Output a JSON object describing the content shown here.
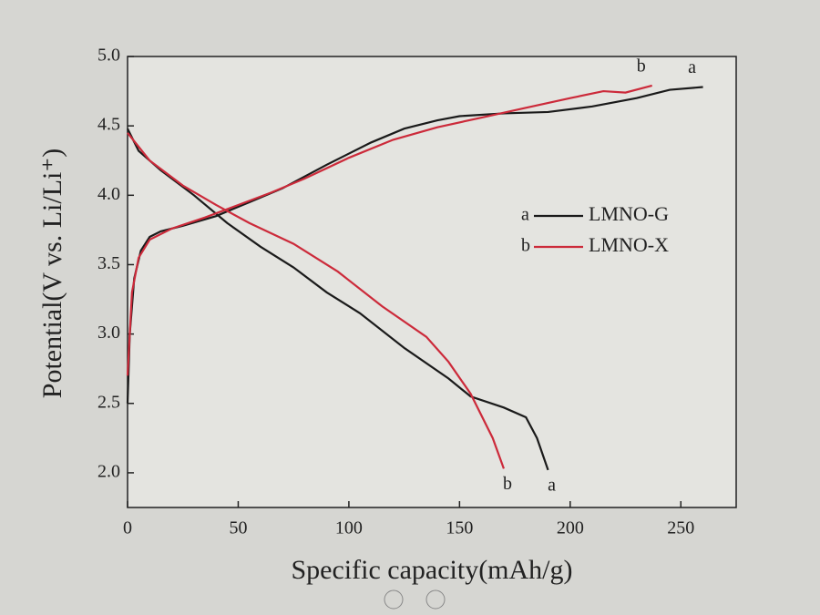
{
  "chart_data": {
    "type": "line",
    "xlabel": "Specific capacity(mAh/g)",
    "ylabel": "Potential(V vs. Li/Li⁺)",
    "xlim": [
      0,
      275
    ],
    "ylim": [
      1.75,
      5.0
    ],
    "xticks": [
      0,
      50,
      100,
      150,
      200,
      250
    ],
    "yticks": [
      {
        "value": 2,
        "label": "2.0"
      },
      {
        "value": 2.5,
        "label": "2.5"
      },
      {
        "value": 3,
        "label": "3.0"
      },
      {
        "value": 3.5,
        "label": "3.5"
      },
      {
        "value": 4,
        "label": "4.0"
      },
      {
        "value": 4.5,
        "label": "4.5"
      },
      {
        "value": 5,
        "label": "5.0"
      }
    ],
    "series": [
      {
        "name": "LMNO-G",
        "letter": "a",
        "color": "#1a1a1a",
        "charge_x": [
          0,
          1,
          3,
          6,
          10,
          15,
          25,
          40,
          55,
          70,
          90,
          110,
          125,
          140,
          150,
          170,
          190,
          210,
          230,
          245,
          260
        ],
        "charge_values": [
          2.5,
          3.0,
          3.4,
          3.6,
          3.7,
          3.74,
          3.78,
          3.85,
          3.95,
          4.05,
          4.22,
          4.38,
          4.48,
          4.54,
          4.57,
          4.59,
          4.6,
          4.64,
          4.7,
          4.76,
          4.78
        ],
        "discharge_x": [
          0,
          5,
          15,
          30,
          45,
          60,
          75,
          90,
          105,
          125,
          145,
          155,
          170,
          180,
          185,
          190
        ],
        "discharge_values": [
          4.48,
          4.32,
          4.18,
          4.0,
          3.8,
          3.63,
          3.48,
          3.3,
          3.15,
          2.9,
          2.68,
          2.55,
          2.47,
          2.4,
          2.25,
          2.02
        ]
      },
      {
        "name": "LMNO-X",
        "letter": "b",
        "color": "#cc2a3a",
        "charge_x": [
          0,
          2,
          5,
          10,
          20,
          35,
          50,
          65,
          80,
          100,
          120,
          140,
          160,
          180,
          200,
          215,
          225,
          237
        ],
        "charge_values": [
          2.7,
          3.3,
          3.55,
          3.68,
          3.76,
          3.84,
          3.93,
          4.02,
          4.12,
          4.27,
          4.4,
          4.49,
          4.56,
          4.63,
          4.7,
          4.75,
          4.74,
          4.79
        ],
        "discharge_x": [
          0,
          10,
          25,
          40,
          55,
          75,
          95,
          115,
          135,
          145,
          155,
          165,
          170
        ],
        "discharge_values": [
          4.45,
          4.25,
          4.07,
          3.93,
          3.8,
          3.65,
          3.45,
          3.2,
          2.98,
          2.8,
          2.57,
          2.25,
          2.03
        ]
      }
    ]
  }
}
